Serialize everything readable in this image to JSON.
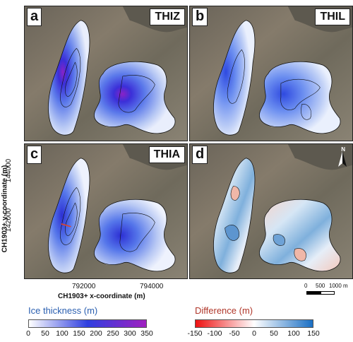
{
  "panels": [
    {
      "label": "a",
      "title": "THIZ"
    },
    {
      "label": "b",
      "title": "THIL"
    },
    {
      "label": "c",
      "title": "THIA"
    },
    {
      "label": "d",
      "title": ""
    }
  ],
  "axes": {
    "x_label": "CH1903+ x-coordinate (m)",
    "y_label": "CH1903+ y-coordinate (m)",
    "x_ticks": [
      "792000",
      "794000"
    ],
    "y_ticks": [
      "144000",
      "142000"
    ]
  },
  "scale_bar": {
    "ticks": [
      "0",
      "500",
      "1000 m"
    ]
  },
  "north_arrow": {
    "label": "N"
  },
  "colorbars": {
    "thickness": {
      "title": "Ice thickness (m)",
      "ticks": [
        "0",
        "50",
        "100",
        "150",
        "200",
        "250",
        "300",
        "350"
      ],
      "colors": [
        "#ffffff",
        "#2f3fe0",
        "#a020c0"
      ]
    },
    "difference": {
      "title": "Difference (m)",
      "ticks": [
        "-150",
        "-100",
        "-50",
        "0",
        "50",
        "100",
        "150"
      ],
      "colors": [
        "#ee1111",
        "#ffffff",
        "#1a6fc4"
      ]
    }
  }
}
